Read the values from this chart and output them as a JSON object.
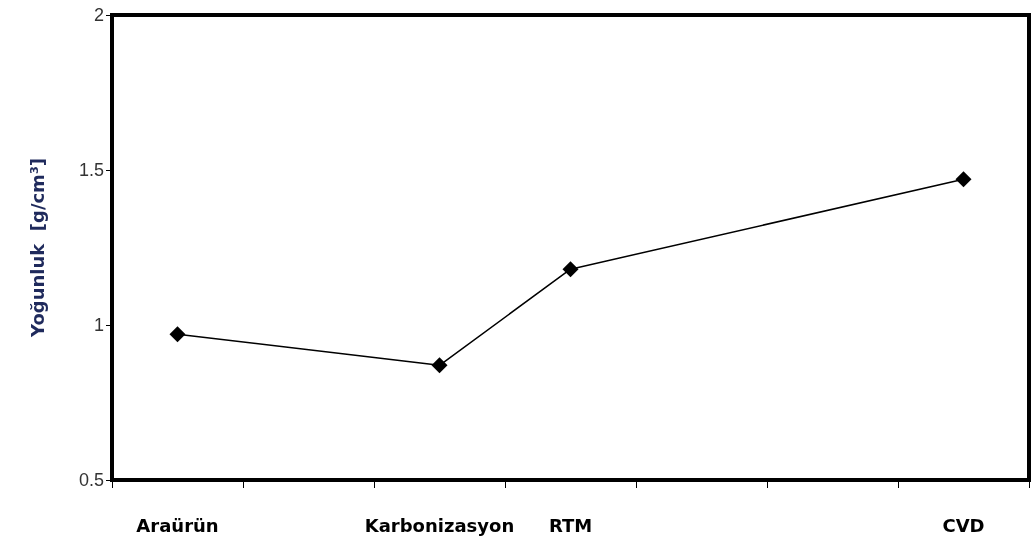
{
  "chart_data": {
    "type": "line",
    "ylabel": "Yoğunluk  [g/cm³]",
    "categories": [
      "Araürün",
      null,
      "Karbonizasyon",
      "RTM",
      null,
      null,
      "CVD"
    ],
    "series": [
      {
        "color": "#000000",
        "values": [
          0.97,
          null,
          0.87,
          1.18,
          null,
          null,
          1.47
        ]
      }
    ],
    "ylim": [
      0.5,
      2
    ],
    "yticks": [
      0.5,
      1,
      1.5,
      2
    ],
    "grid": false,
    "marker": "diamond",
    "line_style": "solid"
  }
}
